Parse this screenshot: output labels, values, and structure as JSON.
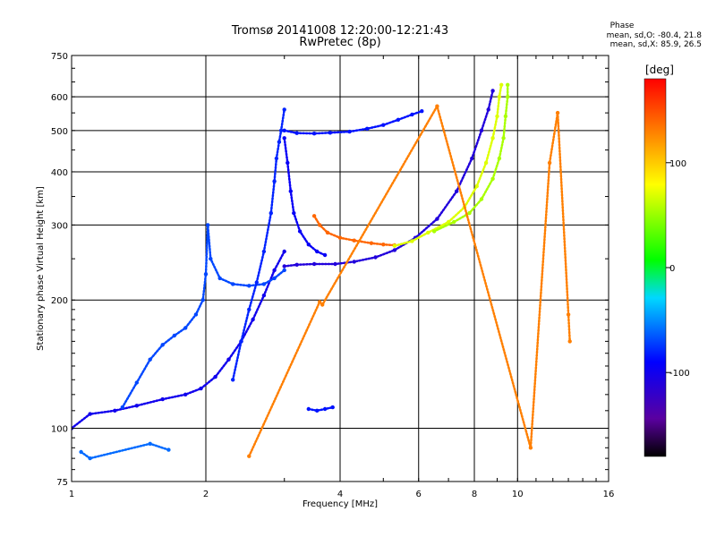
{
  "chart_data": {
    "type": "scatter",
    "title": "Tromsø 20141008 12:20:00-12:21:43",
    "subtitle": "RwPretec (8p)",
    "xlabel": "Frequency [MHz]",
    "ylabel": "Stationary phase Virtual Height [km]",
    "x_scale": "log",
    "y_scale": "log",
    "xlim": [
      1,
      16
    ],
    "ylim": [
      75,
      750
    ],
    "x_ticks": [
      1,
      2,
      4,
      6,
      8,
      10,
      16
    ],
    "x_tick_labels": [
      "1",
      "2",
      "4",
      "6",
      "8",
      "10",
      "16"
    ],
    "y_ticks": [
      75,
      100,
      200,
      300,
      400,
      500,
      600,
      750
    ],
    "y_tick_labels": [
      "75",
      "100",
      "200",
      "300",
      "400",
      "500",
      "600",
      "750"
    ],
    "grid": true,
    "color_variable": "phase [deg]",
    "traces": [
      {
        "phase": -100,
        "points": [
          [
            1.0,
            100
          ],
          [
            1.1,
            108
          ],
          [
            1.25,
            110
          ],
          [
            1.4,
            113
          ],
          [
            1.6,
            117
          ],
          [
            1.8,
            120
          ],
          [
            1.95,
            124
          ],
          [
            2.1,
            132
          ],
          [
            2.25,
            145
          ],
          [
            2.4,
            160
          ],
          [
            2.55,
            180
          ],
          [
            2.7,
            205
          ],
          [
            2.85,
            235
          ],
          [
            3.0,
            260
          ]
        ]
      },
      {
        "phase": -70,
        "points": [
          [
            1.3,
            112
          ],
          [
            1.4,
            128
          ],
          [
            1.5,
            145
          ],
          [
            1.6,
            157
          ],
          [
            1.7,
            165
          ],
          [
            1.8,
            172
          ],
          [
            1.9,
            185
          ],
          [
            1.97,
            200
          ],
          [
            2.0,
            230
          ],
          [
            2.02,
            300
          ],
          [
            2.05,
            250
          ],
          [
            2.15,
            225
          ],
          [
            2.3,
            218
          ],
          [
            2.5,
            216
          ],
          [
            2.7,
            218
          ],
          [
            2.85,
            225
          ],
          [
            3.0,
            235
          ]
        ]
      },
      {
        "phase": -80,
        "points": [
          [
            2.3,
            130
          ],
          [
            2.4,
            160
          ],
          [
            2.5,
            190
          ],
          [
            2.6,
            220
          ],
          [
            2.7,
            260
          ],
          [
            2.8,
            320
          ],
          [
            2.85,
            380
          ],
          [
            2.88,
            430
          ],
          [
            2.92,
            470
          ],
          [
            2.95,
            500
          ],
          [
            3.0,
            560
          ]
        ]
      },
      {
        "phase": -85,
        "points": [
          [
            3.0,
            500
          ],
          [
            3.2,
            493
          ],
          [
            3.5,
            492
          ],
          [
            3.8,
            494
          ],
          [
            4.2,
            497
          ],
          [
            4.6,
            505
          ],
          [
            5.0,
            515
          ],
          [
            5.4,
            530
          ],
          [
            5.8,
            545
          ],
          [
            6.1,
            555
          ]
        ]
      },
      {
        "phase": -110,
        "points": [
          [
            3.0,
            240
          ],
          [
            3.2,
            242
          ],
          [
            3.5,
            243
          ],
          [
            3.9,
            243
          ],
          [
            4.3,
            246
          ],
          [
            4.8,
            252
          ],
          [
            5.3,
            262
          ],
          [
            5.9,
            280
          ],
          [
            6.6,
            310
          ],
          [
            7.3,
            360
          ],
          [
            7.9,
            430
          ],
          [
            8.3,
            500
          ],
          [
            8.6,
            560
          ],
          [
            8.8,
            620
          ]
        ]
      },
      {
        "phase": -95,
        "points": [
          [
            3.0,
            480
          ],
          [
            3.05,
            420
          ],
          [
            3.1,
            360
          ],
          [
            3.15,
            320
          ],
          [
            3.25,
            290
          ],
          [
            3.4,
            270
          ],
          [
            3.55,
            260
          ],
          [
            3.7,
            255
          ]
        ]
      },
      {
        "phase": 140,
        "points": [
          [
            3.5,
            315
          ],
          [
            3.6,
            300
          ],
          [
            3.75,
            288
          ],
          [
            4.0,
            280
          ],
          [
            4.3,
            276
          ],
          [
            4.7,
            272
          ],
          [
            5.0,
            270
          ],
          [
            5.3,
            269
          ]
        ]
      },
      {
        "phase": 70,
        "points": [
          [
            5.3,
            268
          ],
          [
            5.8,
            275
          ],
          [
            6.3,
            288
          ],
          [
            7.0,
            305
          ],
          [
            7.6,
            330
          ],
          [
            8.1,
            370
          ],
          [
            8.5,
            420
          ],
          [
            8.8,
            480
          ],
          [
            9.0,
            540
          ],
          [
            9.1,
            600
          ],
          [
            9.2,
            640
          ]
        ]
      },
      {
        "phase": 55,
        "points": [
          [
            6.5,
            290
          ],
          [
            7.2,
            305
          ],
          [
            7.8,
            320
          ],
          [
            8.3,
            345
          ],
          [
            8.8,
            385
          ],
          [
            9.1,
            430
          ],
          [
            9.3,
            480
          ],
          [
            9.4,
            540
          ],
          [
            9.5,
            600
          ],
          [
            9.5,
            640
          ]
        ]
      },
      {
        "phase": -85,
        "points": [
          [
            3.4,
            111
          ],
          [
            3.55,
            110
          ],
          [
            3.7,
            111
          ],
          [
            3.85,
            112
          ]
        ]
      },
      {
        "phase": -60,
        "points": [
          [
            1.05,
            88
          ],
          [
            1.1,
            85
          ],
          [
            1.5,
            92
          ],
          [
            1.65,
            89
          ]
        ]
      },
      {
        "phase": 130,
        "points": [
          [
            2.5,
            86
          ],
          [
            3.6,
            198
          ],
          [
            3.65,
            195
          ],
          [
            6.6,
            570
          ],
          [
            10.7,
            90
          ],
          [
            11.8,
            420
          ],
          [
            12.3,
            550
          ],
          [
            13.0,
            185
          ],
          [
            13.1,
            160
          ]
        ]
      }
    ]
  },
  "colorbar": {
    "label": "[deg]",
    "range": [
      -180,
      180
    ],
    "ticks": [
      100,
      0,
      -100
    ],
    "tick_labels": [
      "100",
      "0",
      "-100"
    ]
  },
  "stats": {
    "header": "Phase",
    "line1": "mean, sd,O: -80.4, 21.8",
    "line2": "mean, sd,X:  85.9, 26.5"
  }
}
